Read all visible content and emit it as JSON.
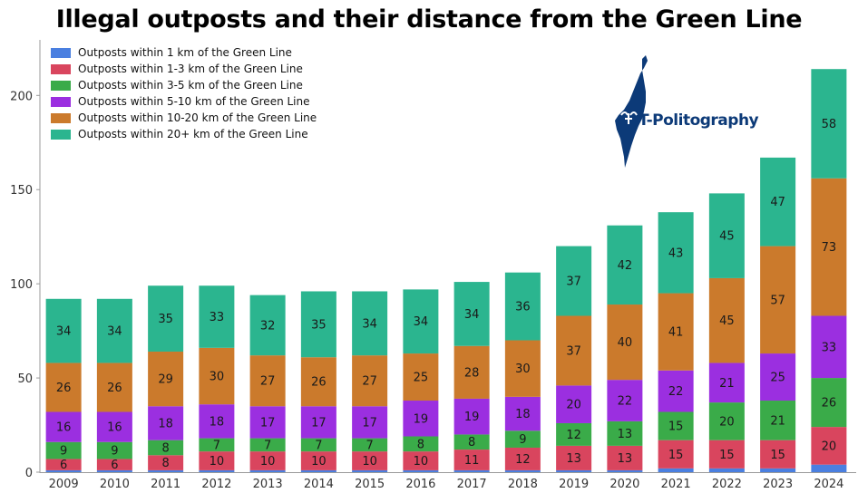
{
  "page": {
    "title": "Illegal outposts and their distance from the Green Line"
  },
  "logo": {
    "text": "T-Politography",
    "icon": "israel-map-logo-icon"
  },
  "chart_data": {
    "type": "bar",
    "stacked": true,
    "title": "Illegal outposts and their distance from the Green Line",
    "xlabel": "",
    "ylabel": "",
    "ylim": [
      0,
      220
    ],
    "yticks": [
      0,
      50,
      100,
      150,
      200
    ],
    "grid": false,
    "legend_position": "top-left",
    "categories": [
      "2009",
      "2010",
      "2011",
      "2012",
      "2013",
      "2014",
      "2015",
      "2016",
      "2017",
      "2018",
      "2019",
      "2020",
      "2021",
      "2022",
      "2023",
      "2024"
    ],
    "series": [
      {
        "name": "Outposts within 1 km of the Green Line",
        "color": "#4a7fe0",
        "values": [
          1,
          1,
          1,
          1,
          1,
          1,
          1,
          1,
          1,
          1,
          1,
          1,
          2,
          2,
          2,
          4
        ],
        "show_labels": false
      },
      {
        "name": "Outposts within 1-3 km of the Green Line",
        "color": "#d9455e",
        "values": [
          6,
          6,
          8,
          10,
          10,
          10,
          10,
          10,
          11,
          12,
          13,
          13,
          15,
          15,
          15,
          20
        ],
        "show_labels": true
      },
      {
        "name": "Outposts within 3-5 km of the Green Line",
        "color": "#3aab49",
        "values": [
          9,
          9,
          8,
          7,
          7,
          7,
          7,
          8,
          8,
          9,
          12,
          13,
          15,
          20,
          21,
          26
        ],
        "show_labels": true
      },
      {
        "name": "Outposts within 5-10 km of the Green Line",
        "color": "#9b2fe0",
        "values": [
          16,
          16,
          18,
          18,
          17,
          17,
          17,
          19,
          19,
          18,
          20,
          22,
          22,
          21,
          25,
          33
        ],
        "show_labels": true
      },
      {
        "name": "Outposts within 10-20 km of the Green Line",
        "color": "#cb7a2c",
        "values": [
          26,
          26,
          29,
          30,
          27,
          26,
          27,
          25,
          28,
          30,
          37,
          40,
          41,
          45,
          57,
          73
        ],
        "show_labels": true
      },
      {
        "name": "Outposts within 20+ km of the Green Line",
        "color": "#2bb58f",
        "values": [
          34,
          34,
          35,
          33,
          32,
          35,
          34,
          34,
          34,
          36,
          37,
          42,
          43,
          45,
          47,
          58
        ],
        "show_labels": true
      }
    ]
  }
}
